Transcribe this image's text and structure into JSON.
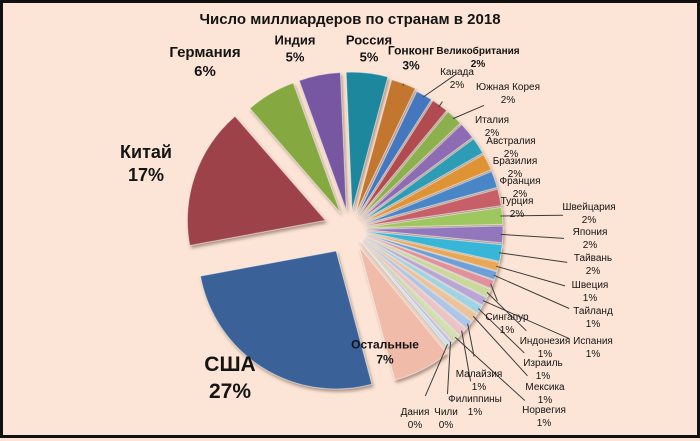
{
  "title": "Число миллиардеров по странам в 2018",
  "background_color": "#fce5d6",
  "frame_color": "#111111",
  "leader_line_color": "#3c3c3c",
  "chart_data": {
    "type": "pie",
    "title": "Число миллиардеров по странам в 2018",
    "unit": "%",
    "start_angle_deg": 165,
    "direction": "clockwise",
    "exploded": true,
    "slices": [
      {
        "label": "США",
        "value": 27,
        "pct_text": "27%",
        "color": "#3a6298"
      },
      {
        "label": "Китай",
        "value": 17,
        "pct_text": "17%",
        "color": "#9e4348"
      },
      {
        "label": "Германия",
        "value": 6,
        "pct_text": "6%",
        "color": "#86a83f"
      },
      {
        "label": "Индия",
        "value": 5,
        "pct_text": "5%",
        "color": "#7757a2"
      },
      {
        "label": "Россия",
        "value": 5,
        "pct_text": "5%",
        "color": "#1b879d"
      },
      {
        "label": "Гонконг",
        "value": 3,
        "pct_text": "3%",
        "color": "#c2762f"
      },
      {
        "label": "Великобритания",
        "value": 2,
        "pct_text": "2%",
        "color": "#4577be"
      },
      {
        "label": "Канада",
        "value": 2,
        "pct_text": "2%",
        "color": "#b04b50"
      },
      {
        "label": "Южная Корея",
        "value": 2,
        "pct_text": "2%",
        "color": "#8cb04e"
      },
      {
        "label": "Италия",
        "value": 2,
        "pct_text": "2%",
        "color": "#8d6cb4"
      },
      {
        "label": "Австралия",
        "value": 2,
        "pct_text": "2%",
        "color": "#2f9cb4"
      },
      {
        "label": "Бразилия",
        "value": 2,
        "pct_text": "2%",
        "color": "#de9336"
      },
      {
        "label": "Франция",
        "value": 2,
        "pct_text": "2%",
        "color": "#4a86c8"
      },
      {
        "label": "Турция",
        "value": 2,
        "pct_text": "2%",
        "color": "#c65f68"
      },
      {
        "label": "Швейцария",
        "value": 2,
        "pct_text": "2%",
        "color": "#9ec85e"
      },
      {
        "label": "Япония",
        "value": 2,
        "pct_text": "2%",
        "color": "#9377bc"
      },
      {
        "label": "Тайвань",
        "value": 2,
        "pct_text": "2%",
        "color": "#38b6d8"
      },
      {
        "label": "Швеция",
        "value": 1,
        "pct_text": "1%",
        "color": "#e8a854"
      },
      {
        "label": "Тайланд",
        "value": 1,
        "pct_text": "1%",
        "color": "#6ea0d8"
      },
      {
        "label": "Сингапур",
        "value": 1,
        "pct_text": "1%",
        "color": "#e0919c"
      },
      {
        "label": "Индонезия",
        "value": 1,
        "pct_text": "1%",
        "color": "#cbd89c"
      },
      {
        "label": "Испания",
        "value": 1,
        "pct_text": "1%",
        "color": "#b8a6d4"
      },
      {
        "label": "Израиль",
        "value": 1,
        "pct_text": "1%",
        "color": "#a0d4e4"
      },
      {
        "label": "Мексика",
        "value": 1,
        "pct_text": "1%",
        "color": "#ecc49c"
      },
      {
        "label": "Малайзия",
        "value": 1,
        "pct_text": "1%",
        "color": "#aec6e8"
      },
      {
        "label": "Филиппины",
        "value": 1,
        "pct_text": "1%",
        "color": "#ecc4c8"
      },
      {
        "label": "Норвегия",
        "value": 1,
        "pct_text": "1%",
        "color": "#d4e0b4"
      },
      {
        "label": "Чили",
        "value": 0,
        "pct_text": "0%",
        "color": "#d0c8e4"
      },
      {
        "label": "Дания",
        "value": 0,
        "pct_text": "0%",
        "color": "#c4e0ec"
      },
      {
        "label": "Остальные",
        "value": 7,
        "pct_text": "7%",
        "color": "#f0bba8"
      }
    ]
  }
}
